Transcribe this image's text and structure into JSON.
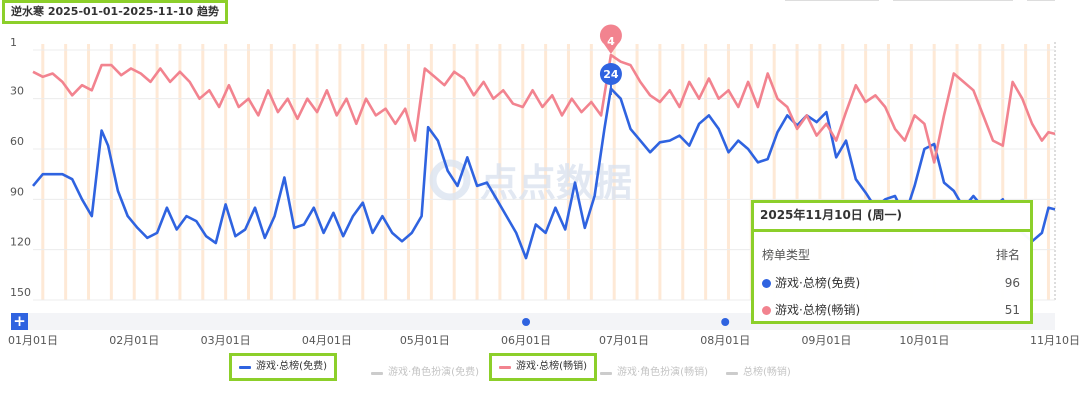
{
  "title": "逆水寒 2025-01-01-2025-11-10 趋势",
  "watermark": "点点数据",
  "add_button": "+",
  "colors": {
    "free": "#2f63e0",
    "paid": "#f2838f",
    "inactive": "#cccccc",
    "highlight": "#8ccf2a",
    "stripe": "#fde2c8"
  },
  "legend": [
    {
      "label": "游戏·总榜(免费)",
      "active": true,
      "color": "#2f63e0"
    },
    {
      "label": "游戏·角色扮演(免费)",
      "active": false,
      "color": "#cccccc"
    },
    {
      "label": "游戏·总榜(畅销)",
      "active": true,
      "color": "#f2838f"
    },
    {
      "label": "游戏·角色扮演(畅销)",
      "active": false,
      "color": "#cccccc"
    },
    {
      "label": "总榜(畅销)",
      "active": false,
      "color": "#cccccc"
    }
  ],
  "tooltip": {
    "date": "2025年11月10日 (周一)",
    "header_type": "榜单类型",
    "header_rank": "排名",
    "rows": [
      {
        "label": "游戏·总榜(免费)",
        "value": "96",
        "color": "#2f63e0"
      },
      {
        "label": "游戏·总榜(畅销)",
        "value": "51",
        "color": "#f2838f"
      }
    ]
  },
  "chart_data": {
    "type": "line",
    "y_inverted": true,
    "ylim": [
      1,
      150
    ],
    "y_ticks": [
      1,
      30,
      60,
      90,
      120,
      150
    ],
    "x_start": "2025-01-01",
    "x_end": "2025-11-10",
    "x_ticks": [
      {
        "date": "2025-01-01",
        "label": "01月01日"
      },
      {
        "date": "2025-02-01",
        "label": "02月01日"
      },
      {
        "date": "2025-03-01",
        "label": "03月01日"
      },
      {
        "date": "2025-04-01",
        "label": "04月01日"
      },
      {
        "date": "2025-05-01",
        "label": "05月01日"
      },
      {
        "date": "2025-06-01",
        "label": "06月01日"
      },
      {
        "date": "2025-07-01",
        "label": "07月01日"
      },
      {
        "date": "2025-08-01",
        "label": "08月01日"
      },
      {
        "date": "2025-09-01",
        "label": "09月01日"
      },
      {
        "date": "2025-10-01",
        "label": "10月01日"
      },
      {
        "date": "2025-11-10",
        "label": "11月10日"
      }
    ],
    "markers": [
      {
        "date": "2025-06-27",
        "series": "游戏·总榜(畅销)",
        "value": 4
      },
      {
        "date": "2025-06-27",
        "series": "游戏·总榜(免费)",
        "value": 24
      }
    ],
    "event_dates": [
      "2025-06-01",
      "2025-08-01"
    ],
    "series": [
      {
        "name": "游戏·总榜(免费)",
        "color": "#2f63e0",
        "points": [
          [
            "2025-01-01",
            82
          ],
          [
            "2025-01-04",
            75
          ],
          [
            "2025-01-07",
            75
          ],
          [
            "2025-01-10",
            75
          ],
          [
            "2025-01-13",
            78
          ],
          [
            "2025-01-16",
            90
          ],
          [
            "2025-01-19",
            100
          ],
          [
            "2025-01-22",
            49
          ],
          [
            "2025-01-24",
            58
          ],
          [
            "2025-01-27",
            85
          ],
          [
            "2025-01-30",
            100
          ],
          [
            "2025-02-02",
            107
          ],
          [
            "2025-02-05",
            113
          ],
          [
            "2025-02-08",
            110
          ],
          [
            "2025-02-11",
            95
          ],
          [
            "2025-02-14",
            108
          ],
          [
            "2025-02-17",
            100
          ],
          [
            "2025-02-20",
            103
          ],
          [
            "2025-02-23",
            112
          ],
          [
            "2025-02-26",
            116
          ],
          [
            "2025-03-01",
            93
          ],
          [
            "2025-03-04",
            112
          ],
          [
            "2025-03-07",
            108
          ],
          [
            "2025-03-10",
            95
          ],
          [
            "2025-03-13",
            113
          ],
          [
            "2025-03-16",
            100
          ],
          [
            "2025-03-19",
            77
          ],
          [
            "2025-03-22",
            107
          ],
          [
            "2025-03-25",
            105
          ],
          [
            "2025-03-28",
            95
          ],
          [
            "2025-03-31",
            110
          ],
          [
            "2025-04-03",
            98
          ],
          [
            "2025-04-06",
            112
          ],
          [
            "2025-04-09",
            100
          ],
          [
            "2025-04-12",
            92
          ],
          [
            "2025-04-15",
            110
          ],
          [
            "2025-04-18",
            100
          ],
          [
            "2025-04-21",
            110
          ],
          [
            "2025-04-24",
            115
          ],
          [
            "2025-04-27",
            110
          ],
          [
            "2025-04-30",
            100
          ],
          [
            "2025-05-02",
            47
          ],
          [
            "2025-05-05",
            55
          ],
          [
            "2025-05-08",
            73
          ],
          [
            "2025-05-11",
            82
          ],
          [
            "2025-05-14",
            65
          ],
          [
            "2025-05-17",
            82
          ],
          [
            "2025-05-20",
            80
          ],
          [
            "2025-05-23",
            90
          ],
          [
            "2025-05-26",
            100
          ],
          [
            "2025-05-29",
            110
          ],
          [
            "2025-06-01",
            125
          ],
          [
            "2025-06-04",
            105
          ],
          [
            "2025-06-07",
            110
          ],
          [
            "2025-06-10",
            95
          ],
          [
            "2025-06-13",
            108
          ],
          [
            "2025-06-16",
            80
          ],
          [
            "2025-06-19",
            107
          ],
          [
            "2025-06-22",
            88
          ],
          [
            "2025-06-25",
            48
          ],
          [
            "2025-06-27",
            24
          ],
          [
            "2025-06-30",
            30
          ],
          [
            "2025-07-03",
            48
          ],
          [
            "2025-07-06",
            55
          ],
          [
            "2025-07-09",
            62
          ],
          [
            "2025-07-12",
            56
          ],
          [
            "2025-07-15",
            55
          ],
          [
            "2025-07-18",
            52
          ],
          [
            "2025-07-21",
            58
          ],
          [
            "2025-07-24",
            45
          ],
          [
            "2025-07-27",
            40
          ],
          [
            "2025-07-30",
            48
          ],
          [
            "2025-08-02",
            62
          ],
          [
            "2025-08-05",
            55
          ],
          [
            "2025-08-08",
            60
          ],
          [
            "2025-08-11",
            68
          ],
          [
            "2025-08-14",
            66
          ],
          [
            "2025-08-17",
            50
          ],
          [
            "2025-08-20",
            40
          ],
          [
            "2025-08-23",
            46
          ],
          [
            "2025-08-26",
            40
          ],
          [
            "2025-08-29",
            44
          ],
          [
            "2025-09-01",
            38
          ],
          [
            "2025-09-04",
            65
          ],
          [
            "2025-09-07",
            55
          ],
          [
            "2025-09-10",
            78
          ],
          [
            "2025-09-13",
            86
          ],
          [
            "2025-09-16",
            95
          ],
          [
            "2025-09-19",
            90
          ],
          [
            "2025-09-22",
            88
          ],
          [
            "2025-09-25",
            100
          ],
          [
            "2025-09-28",
            82
          ],
          [
            "2025-10-01",
            60
          ],
          [
            "2025-10-04",
            57
          ],
          [
            "2025-10-07",
            80
          ],
          [
            "2025-10-10",
            85
          ],
          [
            "2025-10-13",
            95
          ],
          [
            "2025-10-16",
            88
          ],
          [
            "2025-10-19",
            95
          ],
          [
            "2025-10-22",
            95
          ],
          [
            "2025-10-25",
            90
          ],
          [
            "2025-10-28",
            105
          ],
          [
            "2025-10-31",
            110
          ],
          [
            "2025-11-03",
            115
          ],
          [
            "2025-11-06",
            110
          ],
          [
            "2025-11-08",
            95
          ],
          [
            "2025-11-10",
            96
          ]
        ]
      },
      {
        "name": "游戏·总榜(畅销)",
        "color": "#f2838f",
        "points": [
          [
            "2025-01-01",
            14
          ],
          [
            "2025-01-04",
            17
          ],
          [
            "2025-01-07",
            15
          ],
          [
            "2025-01-10",
            20
          ],
          [
            "2025-01-13",
            28
          ],
          [
            "2025-01-16",
            22
          ],
          [
            "2025-01-19",
            25
          ],
          [
            "2025-01-22",
            10
          ],
          [
            "2025-01-25",
            10
          ],
          [
            "2025-01-28",
            16
          ],
          [
            "2025-01-31",
            12
          ],
          [
            "2025-02-03",
            15
          ],
          [
            "2025-02-06",
            20
          ],
          [
            "2025-02-09",
            12
          ],
          [
            "2025-02-12",
            20
          ],
          [
            "2025-02-15",
            14
          ],
          [
            "2025-02-18",
            20
          ],
          [
            "2025-02-21",
            30
          ],
          [
            "2025-02-24",
            25
          ],
          [
            "2025-02-27",
            35
          ],
          [
            "2025-03-02",
            22
          ],
          [
            "2025-03-05",
            35
          ],
          [
            "2025-03-08",
            30
          ],
          [
            "2025-03-11",
            40
          ],
          [
            "2025-03-14",
            25
          ],
          [
            "2025-03-17",
            38
          ],
          [
            "2025-03-20",
            30
          ],
          [
            "2025-03-23",
            42
          ],
          [
            "2025-03-26",
            30
          ],
          [
            "2025-03-29",
            38
          ],
          [
            "2025-04-01",
            25
          ],
          [
            "2025-04-04",
            40
          ],
          [
            "2025-04-07",
            30
          ],
          [
            "2025-04-10",
            45
          ],
          [
            "2025-04-13",
            30
          ],
          [
            "2025-04-16",
            40
          ],
          [
            "2025-04-19",
            36
          ],
          [
            "2025-04-22",
            45
          ],
          [
            "2025-04-25",
            36
          ],
          [
            "2025-04-28",
            55
          ],
          [
            "2025-05-01",
            12
          ],
          [
            "2025-05-04",
            17
          ],
          [
            "2025-05-07",
            22
          ],
          [
            "2025-05-10",
            14
          ],
          [
            "2025-05-13",
            18
          ],
          [
            "2025-05-16",
            28
          ],
          [
            "2025-05-19",
            20
          ],
          [
            "2025-05-22",
            30
          ],
          [
            "2025-05-25",
            25
          ],
          [
            "2025-05-28",
            33
          ],
          [
            "2025-05-31",
            35
          ],
          [
            "2025-06-03",
            25
          ],
          [
            "2025-06-06",
            35
          ],
          [
            "2025-06-09",
            28
          ],
          [
            "2025-06-12",
            40
          ],
          [
            "2025-06-15",
            30
          ],
          [
            "2025-06-18",
            38
          ],
          [
            "2025-06-21",
            32
          ],
          [
            "2025-06-24",
            40
          ],
          [
            "2025-06-27",
            4
          ],
          [
            "2025-06-30",
            8
          ],
          [
            "2025-07-03",
            10
          ],
          [
            "2025-07-06",
            20
          ],
          [
            "2025-07-09",
            28
          ],
          [
            "2025-07-12",
            32
          ],
          [
            "2025-07-15",
            25
          ],
          [
            "2025-07-18",
            35
          ],
          [
            "2025-07-21",
            20
          ],
          [
            "2025-07-24",
            30
          ],
          [
            "2025-07-27",
            18
          ],
          [
            "2025-07-30",
            30
          ],
          [
            "2025-08-02",
            25
          ],
          [
            "2025-08-05",
            35
          ],
          [
            "2025-08-08",
            20
          ],
          [
            "2025-08-11",
            35
          ],
          [
            "2025-08-14",
            15
          ],
          [
            "2025-08-17",
            30
          ],
          [
            "2025-08-20",
            35
          ],
          [
            "2025-08-23",
            48
          ],
          [
            "2025-08-26",
            40
          ],
          [
            "2025-08-29",
            52
          ],
          [
            "2025-09-01",
            45
          ],
          [
            "2025-09-04",
            55
          ],
          [
            "2025-09-07",
            38
          ],
          [
            "2025-09-10",
            22
          ],
          [
            "2025-09-13",
            32
          ],
          [
            "2025-09-16",
            28
          ],
          [
            "2025-09-19",
            35
          ],
          [
            "2025-09-22",
            48
          ],
          [
            "2025-09-25",
            55
          ],
          [
            "2025-09-28",
            40
          ],
          [
            "2025-10-01",
            45
          ],
          [
            "2025-10-04",
            68
          ],
          [
            "2025-10-07",
            40
          ],
          [
            "2025-10-10",
            15
          ],
          [
            "2025-10-13",
            20
          ],
          [
            "2025-10-16",
            25
          ],
          [
            "2025-10-19",
            40
          ],
          [
            "2025-10-22",
            55
          ],
          [
            "2025-10-25",
            58
          ],
          [
            "2025-10-28",
            20
          ],
          [
            "2025-10-31",
            30
          ],
          [
            "2025-11-03",
            45
          ],
          [
            "2025-11-06",
            55
          ],
          [
            "2025-11-08",
            50
          ],
          [
            "2025-11-10",
            51
          ]
        ]
      }
    ]
  }
}
